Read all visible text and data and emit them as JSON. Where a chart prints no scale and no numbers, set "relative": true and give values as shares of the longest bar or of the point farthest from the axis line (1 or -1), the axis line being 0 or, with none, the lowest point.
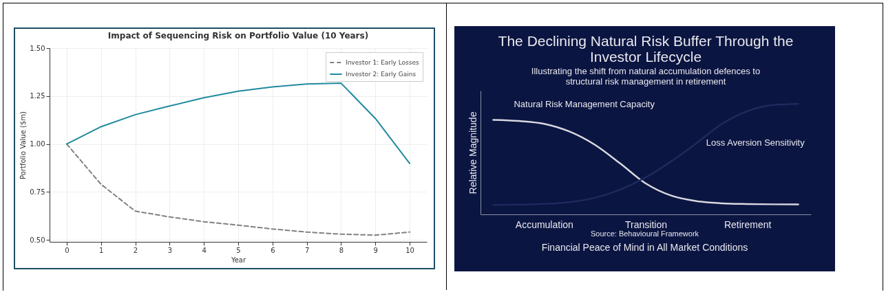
{
  "chart_data": [
    {
      "type": "line",
      "title": "Impact of Sequencing Risk on Portfolio Value (10 Years)",
      "xlabel": "Year",
      "ylabel": "Portfolio Value ($m)",
      "x": [
        0,
        1,
        2,
        3,
        4,
        5,
        6,
        7,
        8,
        9,
        10
      ],
      "xlim": [
        -0.5,
        10.5
      ],
      "xticks": [
        0,
        1,
        2,
        3,
        4,
        5,
        6,
        7,
        8,
        9,
        10
      ],
      "ylim": [
        0.49,
        1.5
      ],
      "yticks": [
        {
          "value": 0.5,
          "label": "0.50"
        },
        {
          "value": 0.75,
          "label": "0.75"
        },
        {
          "value": 1,
          "label": "1.00"
        },
        {
          "value": 1.25,
          "label": "1.25"
        },
        {
          "value": 1.5,
          "label": "1.50"
        }
      ],
      "grid": true,
      "legend": "top right",
      "series": [
        {
          "name": "Investor 1: Early Losses",
          "color": "#808080",
          "line_style": "dashed",
          "values": [
            1.0,
            0.79,
            0.65,
            0.62,
            0.595,
            0.577,
            0.557,
            0.541,
            0.53,
            0.525,
            0.541
          ]
        },
        {
          "name": "Investor 2: Early Gains",
          "color": "#1f8a9e",
          "line_style": "solid",
          "values": [
            1.0,
            1.09,
            1.153,
            1.198,
            1.241,
            1.275,
            1.298,
            1.313,
            1.317,
            1.133,
            0.899
          ]
        }
      ]
    },
    {
      "type": "line",
      "title": "The Declining Natural Risk Buffer Through the Investor Lifecycle",
      "subtitle": "Illustrating the shift from natural accumulation defences to structural risk management in retirement",
      "ylabel": "Relative Magnitude",
      "relative": true,
      "categories": [
        null,
        null,
        "Accumulation",
        null,
        null,
        null,
        "Transition",
        null,
        null,
        null,
        "Retirement",
        null,
        null
      ],
      "annotations": [
        "Source: Behavioural Framework",
        "Financial Peace of Mind in All Market Conditions"
      ],
      "series": [
        {
          "name": "Natural Risk Management Capacity",
          "color": "#d8d8e0",
          "values": [
            0.856,
            0.846,
            0.82,
            0.75,
            0.63,
            0.46,
            0.28,
            0.17,
            0.12,
            0.1,
            0.094,
            0.091,
            0.09
          ]
        },
        {
          "name": "Loss Aversion Sensitivity",
          "color": "#1e2a5e",
          "values": [
            0.086,
            0.088,
            0.095,
            0.11,
            0.15,
            0.225,
            0.335,
            0.48,
            0.645,
            0.82,
            0.935,
            0.99,
            1.0
          ]
        }
      ]
    }
  ]
}
